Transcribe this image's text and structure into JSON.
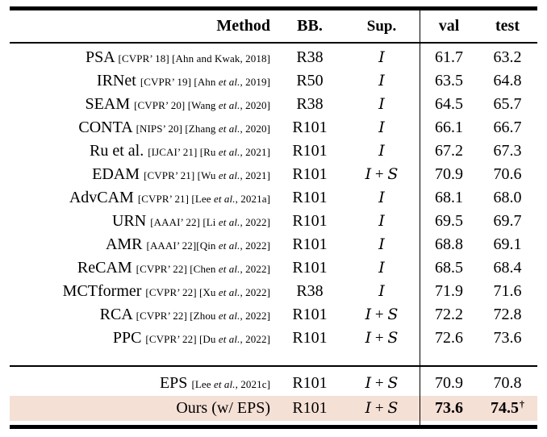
{
  "table": {
    "header": {
      "method": "Method",
      "bb": "BB.",
      "sup": "Sup.",
      "val": "val",
      "test": "test"
    },
    "colors": {
      "highlight": "#f5e0d6",
      "rule": "#000000",
      "text": "#000000"
    },
    "footnote_symbol": "†",
    "sections": [
      {
        "rows": [
          {
            "method": "PSA",
            "cite": "[CVPR’ 18] [Ahn and Kwak, 2018]",
            "bb": "R38",
            "sup": "I",
            "val": "61.7",
            "test": "63.2",
            "bold_scores": false,
            "highlighted": false,
            "dagger": false
          },
          {
            "method": "IRNet",
            "cite": "[CVPR’ 19] [Ahn et al., 2019]",
            "bb": "R50",
            "sup": "I",
            "val": "63.5",
            "test": "64.8",
            "bold_scores": false,
            "highlighted": false,
            "dagger": false
          },
          {
            "method": "SEAM",
            "cite": "[CVPR’ 20] [Wang et al., 2020]",
            "bb": "R38",
            "sup": "I",
            "val": "64.5",
            "test": "65.7",
            "bold_scores": false,
            "highlighted": false,
            "dagger": false
          },
          {
            "method": "CONTA",
            "cite": "[NIPS’ 20] [Zhang et al., 2020]",
            "bb": "R101",
            "sup": "I",
            "val": "66.1",
            "test": "66.7",
            "bold_scores": false,
            "highlighted": false,
            "dagger": false
          },
          {
            "method": "Ru et al.",
            "cite": "[IJCAI’ 21] [Ru et al., 2021]",
            "bb": "R101",
            "sup": "I",
            "val": "67.2",
            "test": "67.3",
            "bold_scores": false,
            "highlighted": false,
            "dagger": false
          },
          {
            "method": "EDAM",
            "cite": "[CVPR’ 21] [Wu et al., 2021]",
            "bb": "R101",
            "sup": "I + S",
            "val": "70.9",
            "test": "70.6",
            "bold_scores": false,
            "highlighted": false,
            "dagger": false
          },
          {
            "method": "AdvCAM",
            "cite": "[CVPR’ 21] [Lee et al., 2021a]",
            "bb": "R101",
            "sup": "I",
            "val": "68.1",
            "test": "68.0",
            "bold_scores": false,
            "highlighted": false,
            "dagger": false
          },
          {
            "method": "URN",
            "cite": "[AAAI’ 22] [Li et al., 2022]",
            "bb": "R101",
            "sup": "I",
            "val": "69.5",
            "test": "69.7",
            "bold_scores": false,
            "highlighted": false,
            "dagger": false
          },
          {
            "method": "AMR",
            "cite": "[AAAI’ 22][Qin et al., 2022]",
            "bb": "R101",
            "sup": "I",
            "val": "68.8",
            "test": "69.1",
            "bold_scores": false,
            "highlighted": false,
            "dagger": false
          },
          {
            "method": "ReCAM",
            "cite": "[CVPR’ 22] [Chen et al., 2022]",
            "bb": "R101",
            "sup": "I",
            "val": "68.5",
            "test": "68.4",
            "bold_scores": false,
            "highlighted": false,
            "dagger": false
          },
          {
            "method": "MCTformer",
            "cite": "[CVPR’ 22] [Xu et al., 2022]",
            "bb": "R38",
            "sup": "I",
            "val": "71.9",
            "test": "71.6",
            "bold_scores": false,
            "highlighted": false,
            "dagger": false
          },
          {
            "method": "RCA",
            "cite": "[CVPR’ 22] [Zhou et al., 2022]",
            "bb": "R101",
            "sup": "I + S",
            "val": "72.2",
            "test": "72.8",
            "bold_scores": false,
            "highlighted": false,
            "dagger": false
          },
          {
            "method": "PPC",
            "cite": "[CVPR’ 22] [Du et al., 2022]",
            "bb": "R101",
            "sup": "I + S",
            "val": "72.6",
            "test": "73.6",
            "bold_scores": false,
            "highlighted": false,
            "dagger": false
          }
        ]
      },
      {
        "rows": [
          {
            "method": "EPS",
            "cite": "[Lee et al., 2021c]",
            "bb": "R101",
            "sup": "I + S",
            "val": "70.9",
            "test": "70.8",
            "bold_scores": false,
            "highlighted": false,
            "dagger": false
          },
          {
            "method": "Ours (w/ EPS)",
            "cite": "",
            "bb": "R101",
            "sup": "I + S",
            "val": "73.6",
            "test": "74.5",
            "bold_scores": true,
            "highlighted": true,
            "dagger": true
          }
        ]
      }
    ]
  }
}
